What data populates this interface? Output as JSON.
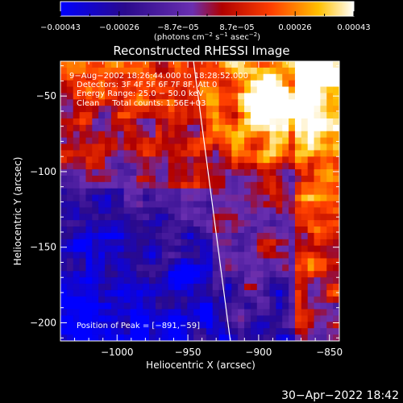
{
  "chart_data": {
    "type": "heatmap",
    "title": "Reconstructed RHESSI Image",
    "xlabel": "Heliocentric X (arcsec)",
    "ylabel": "Heliocentric Y (arcsec)",
    "xlim": [
      -1040,
      -843
    ],
    "ylim": [
      -212,
      -27
    ],
    "x_ticks": [
      -1000,
      -950,
      -900,
      -850
    ],
    "y_ticks": [
      -200,
      -150,
      -100,
      -50
    ],
    "x_tick_labels": [
      "−1000",
      "−950",
      "−900",
      "−850"
    ],
    "y_tick_labels": [
      "−200",
      "−150",
      "−100",
      "−50"
    ],
    "colorbar": {
      "tick_labels": [
        "−0.00043",
        "−0.00026",
        "−8.7e−05",
        "8.7e−05",
        "0.00026",
        "0.00043"
      ],
      "range": [
        -0.00043,
        0.00043
      ],
      "unit_main": "(photons cm",
      "unit_sup1": "−2",
      "unit_mid": " s",
      "unit_sup2": "−1",
      "unit_mid2": " asec",
      "unit_sup3": "−2",
      "unit_end": ")",
      "colors": [
        "#0000ff",
        "#2a0a8c",
        "#6a2fb0",
        "#b00000",
        "#ff4000",
        "#ffc000",
        "#ffffff"
      ]
    },
    "annotations": [
      "9−Aug−2002 18:26:44.000 to 18:28:52.000",
      "Detectors: 3F 4F 5F 6F 7F 8F, Att 0",
      "Energy Range: 25.0 − 50.0 keV",
      "Clean     Total counts: 1.56E+03"
    ],
    "peak_label": "Position of Peak = [−891,−59]",
    "peak": [
      -891,
      -59
    ],
    "limb_line": [
      [
        -946,
        -27
      ],
      [
        -920,
        -212
      ]
    ]
  },
  "footer": {
    "timestamp": "30−Apr−2022 18:42"
  }
}
